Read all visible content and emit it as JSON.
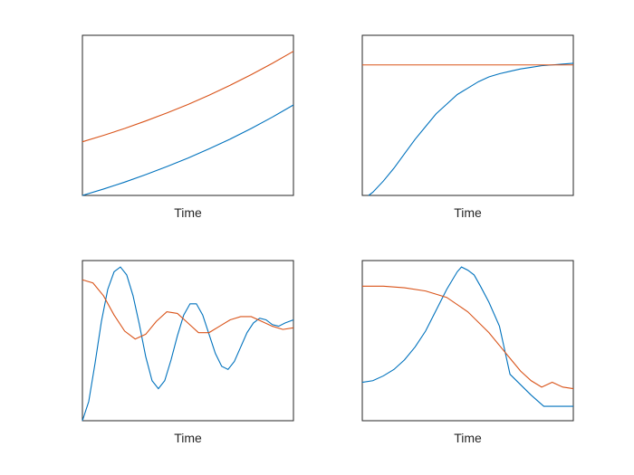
{
  "colors": {
    "series_1": "#0072BD",
    "series_2": "#D95319",
    "axes": "#262626"
  },
  "chart_data": [
    {
      "type": "line",
      "title": "",
      "xlabel": "Time",
      "ylabel": "",
      "xlim": [
        0,
        1
      ],
      "ylim": [
        0,
        1
      ],
      "grid": false,
      "ticks": false,
      "series": [
        {
          "x": [
            0,
            0.1,
            0.2,
            0.3,
            0.4,
            0.5,
            0.6,
            0.7,
            0.8,
            0.9,
            1.0
          ],
          "y": [
            0.0,
            0.04,
            0.083,
            0.13,
            0.18,
            0.233,
            0.291,
            0.352,
            0.418,
            0.489,
            0.565
          ]
        },
        {
          "x": [
            0,
            0.1,
            0.2,
            0.3,
            0.4,
            0.5,
            0.6,
            0.7,
            0.8,
            0.9,
            1.0
          ],
          "y": [
            0.335,
            0.375,
            0.418,
            0.465,
            0.515,
            0.568,
            0.626,
            0.688,
            0.754,
            0.825,
            0.9
          ]
        }
      ]
    },
    {
      "type": "line",
      "title": "",
      "xlabel": "Time",
      "ylabel": "",
      "xlim": [
        0,
        1
      ],
      "ylim": [
        0,
        1
      ],
      "grid": false,
      "ticks": false,
      "series": [
        {
          "x": [
            0.03,
            0.05,
            0.1,
            0.15,
            0.2,
            0.25,
            0.3,
            0.35,
            0.4,
            0.45,
            0.5,
            0.55,
            0.6,
            0.65,
            0.7,
            0.75,
            0.8,
            0.85,
            0.9,
            0.95,
            1.0
          ],
          "y": [
            0.0,
            0.02,
            0.09,
            0.17,
            0.26,
            0.35,
            0.43,
            0.51,
            0.57,
            0.63,
            0.67,
            0.71,
            0.74,
            0.76,
            0.775,
            0.79,
            0.8,
            0.81,
            0.815,
            0.82,
            0.825
          ]
        },
        {
          "x": [
            0,
            1
          ],
          "y": [
            0.815,
            0.815
          ]
        }
      ]
    },
    {
      "type": "line",
      "title": "",
      "xlabel": "Time",
      "ylabel": "",
      "xlim": [
        0,
        1
      ],
      "ylim": [
        0,
        1
      ],
      "grid": false,
      "ticks": false,
      "series": [
        {
          "x": [
            0,
            0.03,
            0.06,
            0.09,
            0.12,
            0.15,
            0.18,
            0.21,
            0.24,
            0.27,
            0.3,
            0.33,
            0.36,
            0.39,
            0.42,
            0.45,
            0.48,
            0.51,
            0.54,
            0.57,
            0.6,
            0.63,
            0.66,
            0.69,
            0.72,
            0.75,
            0.78,
            0.81,
            0.84,
            0.87,
            0.9,
            0.93,
            0.96,
            1.0
          ],
          "y": [
            0.0,
            0.12,
            0.36,
            0.62,
            0.82,
            0.93,
            0.96,
            0.91,
            0.78,
            0.6,
            0.4,
            0.25,
            0.2,
            0.25,
            0.38,
            0.53,
            0.66,
            0.73,
            0.73,
            0.66,
            0.54,
            0.42,
            0.34,
            0.32,
            0.37,
            0.46,
            0.55,
            0.61,
            0.64,
            0.63,
            0.6,
            0.59,
            0.61,
            0.63
          ]
        },
        {
          "x": [
            0,
            0.05,
            0.1,
            0.15,
            0.2,
            0.25,
            0.3,
            0.35,
            0.4,
            0.45,
            0.5,
            0.55,
            0.6,
            0.65,
            0.7,
            0.75,
            0.8,
            0.85,
            0.9,
            0.95,
            1.0
          ],
          "y": [
            0.88,
            0.86,
            0.78,
            0.66,
            0.56,
            0.51,
            0.54,
            0.62,
            0.68,
            0.67,
            0.61,
            0.55,
            0.55,
            0.59,
            0.63,
            0.65,
            0.65,
            0.62,
            0.59,
            0.57,
            0.58
          ]
        }
      ]
    },
    {
      "type": "line",
      "title": "",
      "xlabel": "Time",
      "ylabel": "",
      "xlim": [
        0,
        1
      ],
      "ylim": [
        0,
        1
      ],
      "grid": false,
      "ticks": false,
      "series": [
        {
          "x": [
            0,
            0.05,
            0.1,
            0.15,
            0.2,
            0.25,
            0.3,
            0.35,
            0.4,
            0.45,
            0.47,
            0.5,
            0.53,
            0.56,
            0.6,
            0.65,
            0.7,
            0.8,
            0.86,
            1.0
          ],
          "y": [
            0.24,
            0.25,
            0.28,
            0.32,
            0.38,
            0.46,
            0.56,
            0.69,
            0.82,
            0.93,
            0.96,
            0.94,
            0.91,
            0.84,
            0.74,
            0.59,
            0.29,
            0.16,
            0.09,
            0.09
          ]
        },
        {
          "x": [
            0,
            0.1,
            0.2,
            0.3,
            0.4,
            0.5,
            0.6,
            0.65,
            0.7,
            0.75,
            0.8,
            0.85,
            0.9,
            0.95,
            1.0
          ],
          "y": [
            0.84,
            0.84,
            0.83,
            0.81,
            0.77,
            0.68,
            0.55,
            0.47,
            0.39,
            0.31,
            0.25,
            0.21,
            0.24,
            0.21,
            0.2
          ]
        }
      ]
    }
  ]
}
